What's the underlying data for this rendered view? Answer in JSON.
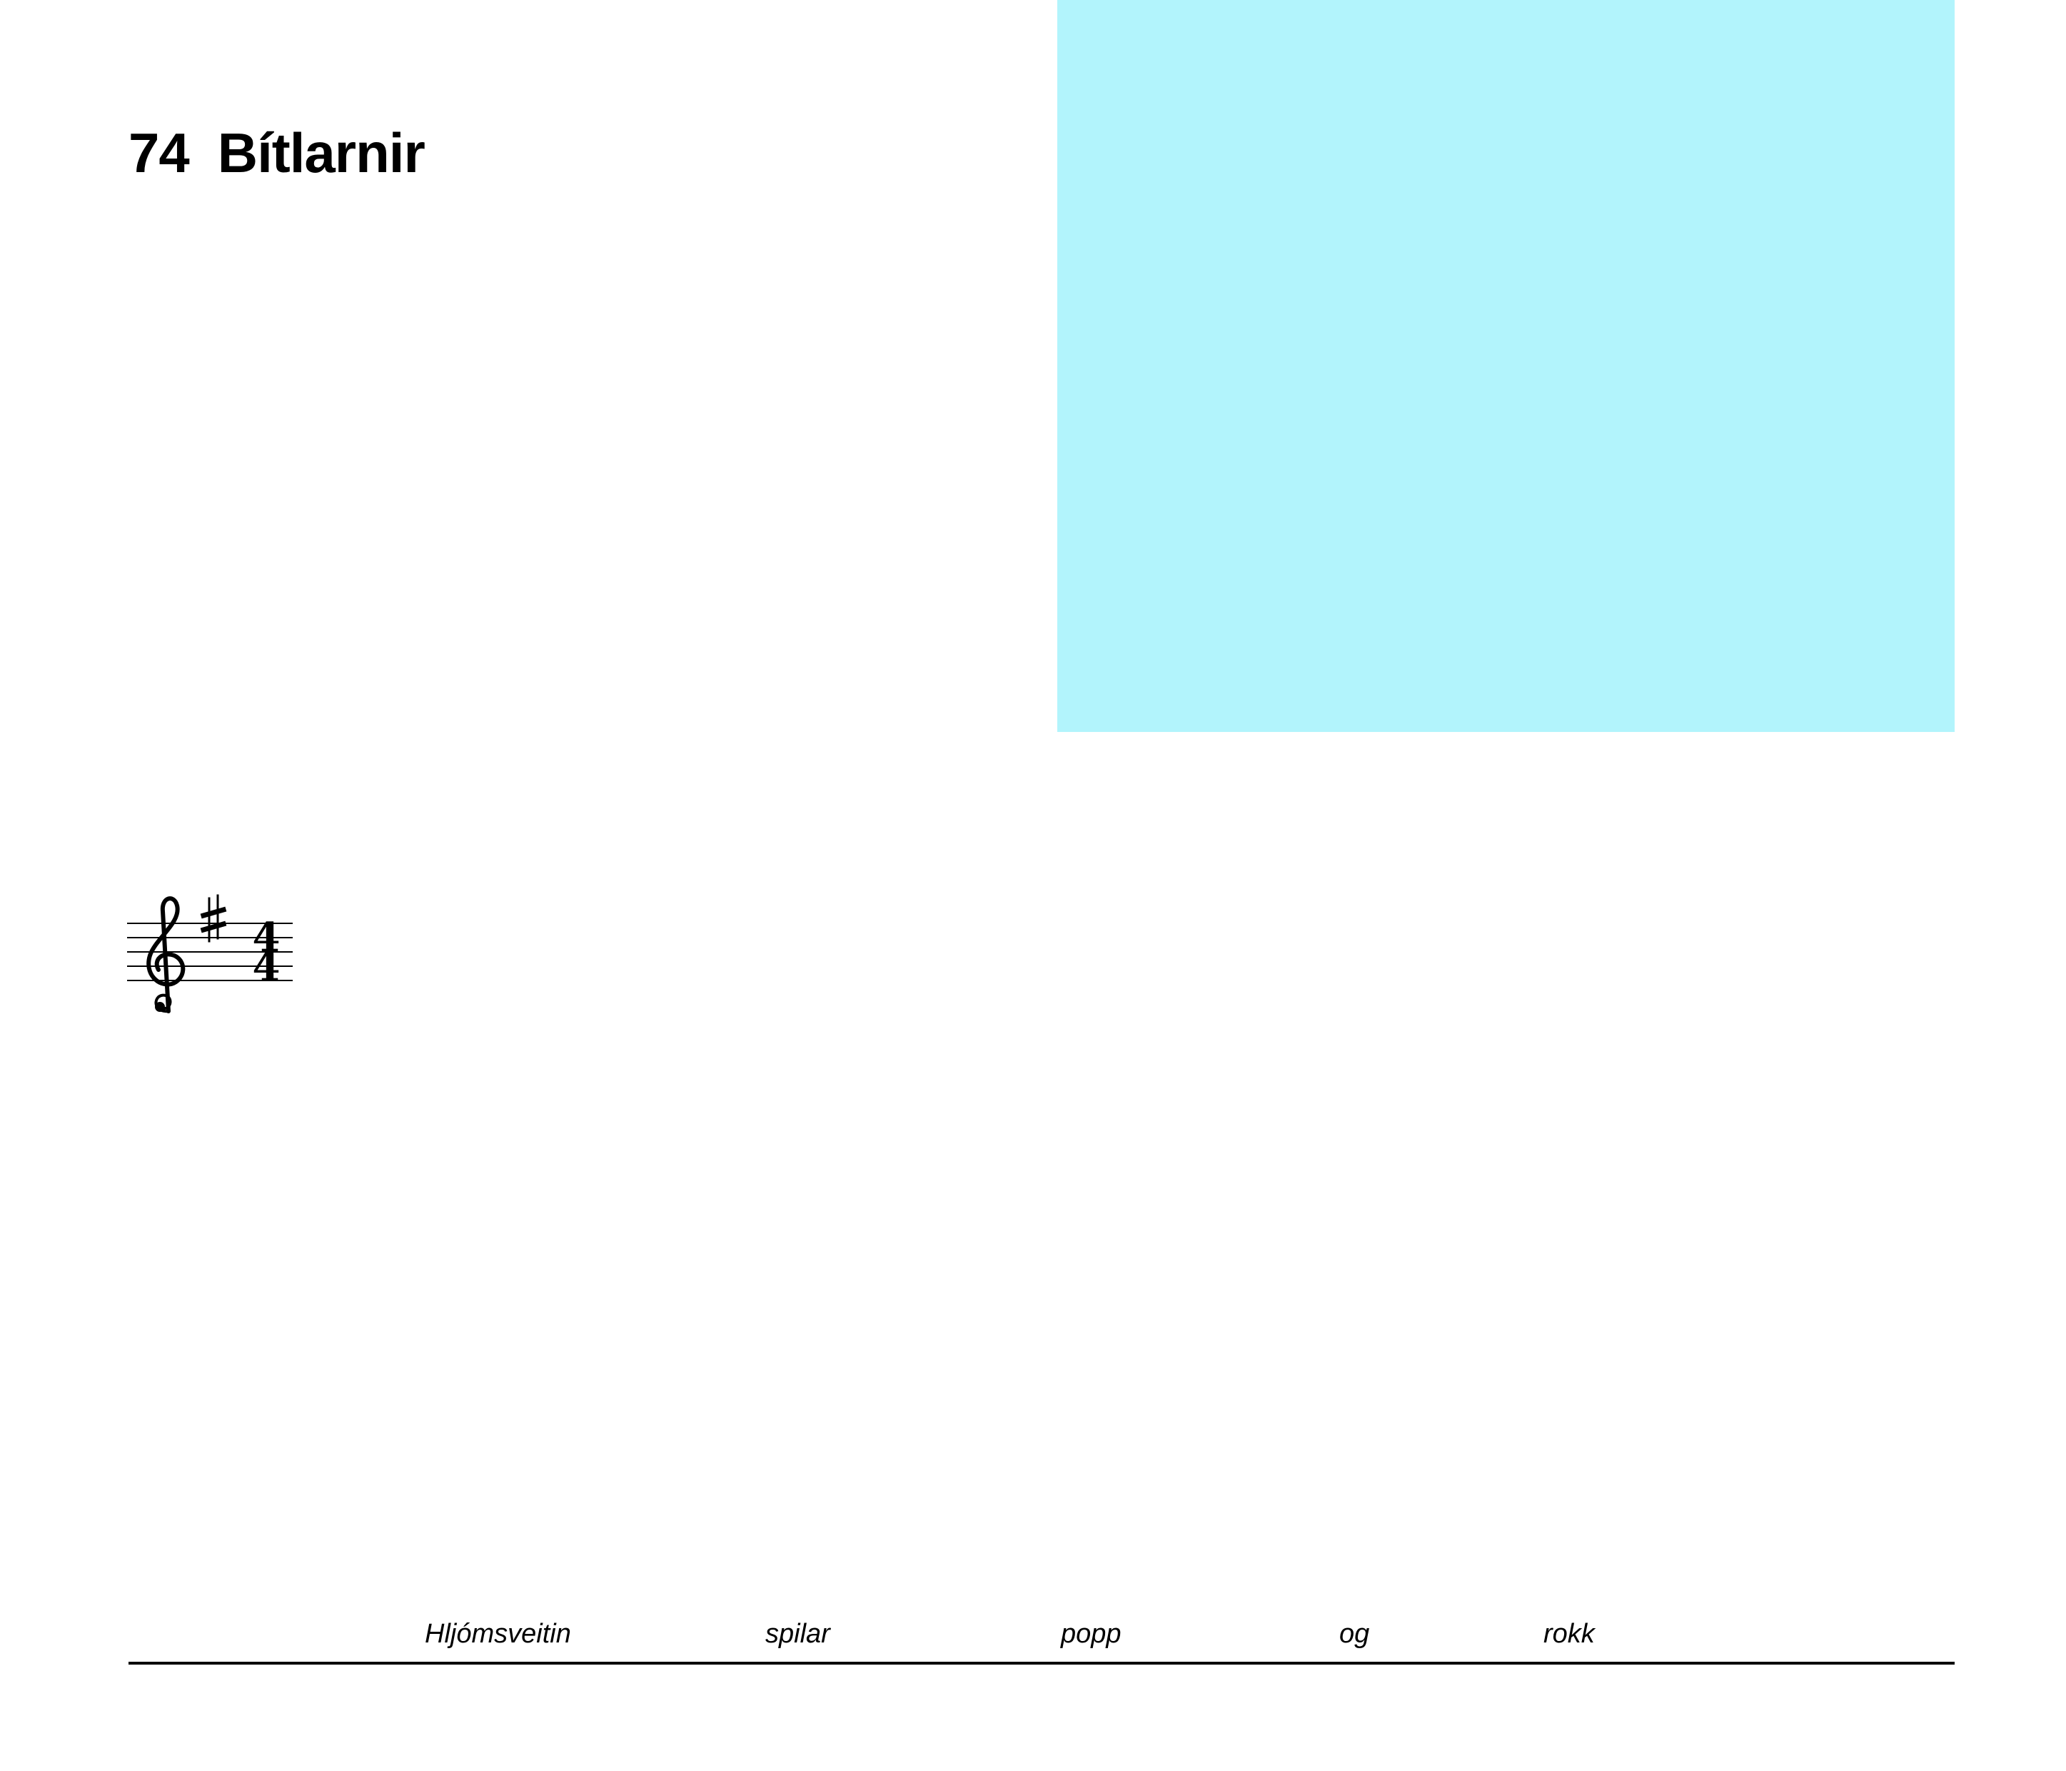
{
  "page": {
    "number": "74",
    "title": "Bítlarnir"
  },
  "image_placeholder": {
    "color": "#b2f4fc"
  },
  "score": {
    "clef": "treble-clef-icon",
    "key_signature": "♯",
    "time_signature": {
      "numerator": "4",
      "denominator": "4"
    }
  },
  "lyrics": {
    "words": [
      "Hljómsveitin",
      "spilar",
      "popp",
      "og",
      "rokk"
    ],
    "line_color": "#000000"
  }
}
